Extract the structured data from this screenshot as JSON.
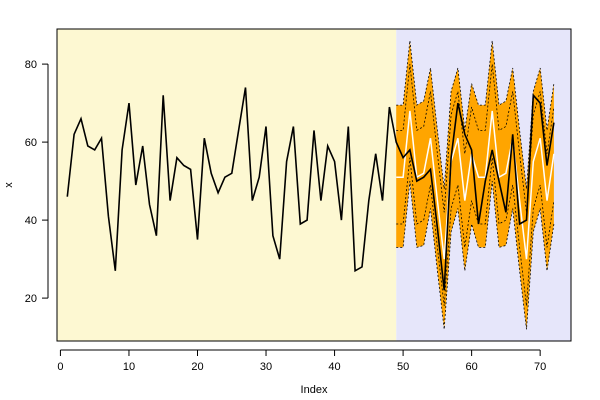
{
  "chart_data": {
    "type": "line",
    "title": "",
    "xlabel": "Index",
    "ylabel": "x",
    "xlim": [
      -0.5,
      74.5
    ],
    "ylim": [
      9,
      89
    ],
    "x_ticks": [
      0,
      10,
      20,
      30,
      40,
      50,
      60,
      70
    ],
    "y_ticks": [
      20,
      40,
      60,
      80
    ],
    "grid": false,
    "legend": "none",
    "regions": [
      {
        "role": "observed",
        "x_range": [
          -0.5,
          49
        ],
        "fill": "#fdf8d2"
      },
      {
        "role": "forecast",
        "x_range": [
          49,
          74.5
        ],
        "fill": "#e6e6fa"
      }
    ],
    "series": [
      {
        "role": "actual",
        "color": "#000000",
        "x": [
          1,
          2,
          3,
          4,
          5,
          6,
          7,
          8,
          9,
          10,
          11,
          12,
          13,
          14,
          15,
          16,
          17,
          18,
          19,
          20,
          21,
          22,
          23,
          24,
          25,
          26,
          27,
          28,
          29,
          30,
          31,
          32,
          33,
          34,
          35,
          36,
          37,
          38,
          39,
          40,
          41,
          42,
          43,
          44,
          45,
          46,
          47,
          48,
          49,
          50,
          51,
          52,
          53,
          54,
          55,
          56,
          57,
          58,
          59,
          60,
          61,
          62,
          63,
          64,
          65,
          66,
          67,
          68,
          69,
          70,
          71,
          72
        ],
        "values": [
          46,
          62,
          66,
          59,
          58,
          61,
          41,
          27,
          58,
          70,
          49,
          59,
          44,
          36,
          72,
          45,
          56,
          54,
          53,
          35,
          61,
          52,
          47,
          51,
          52,
          63,
          74,
          45,
          51,
          64,
          36,
          30,
          55,
          64,
          39,
          40,
          63,
          45,
          59,
          55,
          40,
          64,
          27,
          28,
          45,
          57,
          45,
          69,
          60,
          56,
          58,
          50,
          51,
          53,
          38,
          22,
          56,
          70,
          62,
          58,
          39,
          50,
          58,
          50,
          42,
          62,
          39,
          40,
          72,
          70,
          54,
          65
        ]
      },
      {
        "role": "forecast",
        "color": "#ffffff",
        "x": [
          49,
          50,
          51,
          52,
          53,
          54,
          55,
          56,
          57,
          58,
          59,
          60,
          61,
          62,
          63,
          64,
          65,
          66,
          67,
          68,
          69,
          70,
          71,
          72
        ],
        "values": [
          51,
          51,
          68,
          51,
          52,
          61,
          45,
          30,
          55,
          61,
          45,
          57,
          51,
          51,
          68,
          51,
          52,
          61,
          45,
          30,
          55,
          61,
          45,
          57
        ]
      },
      {
        "role": "upper_95",
        "fill": "#ffa500",
        "x": [
          49,
          50,
          51,
          52,
          53,
          54,
          55,
          56,
          57,
          58,
          59,
          60,
          61,
          62,
          63,
          64,
          65,
          66,
          67,
          68,
          69,
          70,
          71,
          72
        ],
        "values": [
          69.5,
          69.5,
          86,
          69.5,
          70.5,
          79,
          63,
          48,
          73,
          79,
          63,
          75,
          69.5,
          69.5,
          86,
          69.5,
          70.5,
          79,
          63,
          48,
          73,
          79,
          63,
          75
        ]
      },
      {
        "role": "lower_95",
        "x": [
          49,
          50,
          51,
          52,
          53,
          54,
          55,
          56,
          57,
          58,
          59,
          60,
          61,
          62,
          63,
          64,
          65,
          66,
          67,
          68,
          69,
          70,
          71,
          72
        ],
        "values": [
          33,
          33,
          50,
          33,
          33.5,
          43,
          27,
          12,
          37,
          43,
          27,
          39,
          33,
          33,
          50,
          33,
          33.5,
          43,
          27,
          12,
          37,
          43,
          27,
          39
        ]
      },
      {
        "role": "upper_80",
        "x": [
          49,
          50,
          51,
          52,
          53,
          54,
          55,
          56,
          57,
          58,
          59,
          60,
          61,
          62,
          63,
          64,
          65,
          66,
          67,
          68,
          69,
          70,
          71,
          72
        ],
        "values": [
          63,
          63,
          80,
          63,
          64,
          73,
          57,
          42,
          67,
          73,
          57,
          69,
          63,
          63,
          80,
          63,
          64,
          73,
          57,
          42,
          67,
          73,
          57,
          69
        ]
      },
      {
        "role": "lower_80",
        "x": [
          49,
          50,
          51,
          52,
          53,
          54,
          55,
          56,
          57,
          58,
          59,
          60,
          61,
          62,
          63,
          64,
          65,
          66,
          67,
          68,
          69,
          70,
          71,
          72
        ],
        "values": [
          39,
          39,
          56,
          39,
          40,
          49,
          33,
          18,
          43,
          49,
          33,
          45,
          39,
          39,
          56,
          39,
          40,
          49,
          33,
          18,
          43,
          49,
          33,
          45
        ]
      }
    ]
  }
}
